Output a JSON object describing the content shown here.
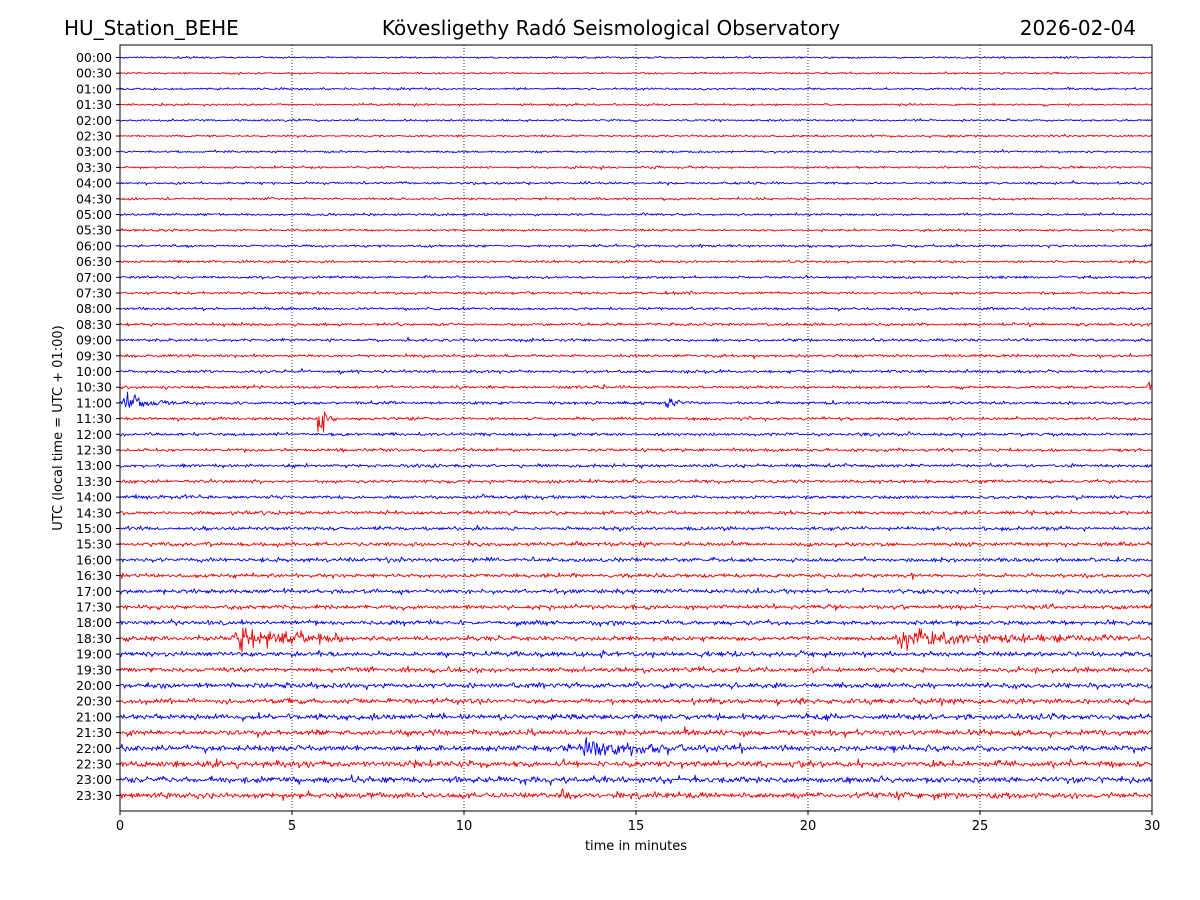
{
  "header": {
    "station": "HU_Station_BEHE",
    "title": "Kövesligethy Radó Seismological Observatory",
    "date": "2026-02-04"
  },
  "chart_data": {
    "type": "line",
    "title": "Kövesligethy Radó Seismological Observatory",
    "xlabel": "time in minutes",
    "ylabel": "UTC (local time = UTC + 01:00)",
    "xlim": [
      0,
      30
    ],
    "xticks": [
      0,
      5,
      10,
      15,
      20,
      25,
      30
    ],
    "grid": "vertical dotted at x ticks",
    "row_labels": [
      "00:00",
      "00:30",
      "01:00",
      "01:30",
      "02:00",
      "02:30",
      "03:00",
      "03:30",
      "04:00",
      "04:30",
      "05:00",
      "05:30",
      "06:00",
      "06:30",
      "07:00",
      "07:30",
      "08:00",
      "08:30",
      "09:00",
      "09:30",
      "10:00",
      "10:30",
      "11:00",
      "11:30",
      "12:00",
      "12:30",
      "13:00",
      "13:30",
      "14:00",
      "14:30",
      "15:00",
      "15:30",
      "16:00",
      "16:30",
      "17:00",
      "17:30",
      "18:00",
      "18:30",
      "19:00",
      "19:30",
      "20:00",
      "20:30",
      "21:00",
      "21:30",
      "22:00",
      "22:30",
      "23:00",
      "23:30"
    ],
    "trace_colors": [
      "#0000ee",
      "#ee0000"
    ],
    "noise_level": [
      0.2,
      0.2,
      0.22,
      0.22,
      0.22,
      0.22,
      0.22,
      0.24,
      0.25,
      0.25,
      0.25,
      0.25,
      0.25,
      0.25,
      0.27,
      0.27,
      0.28,
      0.3,
      0.3,
      0.3,
      0.3,
      0.3,
      0.32,
      0.32,
      0.32,
      0.33,
      0.34,
      0.35,
      0.35,
      0.38,
      0.38,
      0.4,
      0.42,
      0.42,
      0.45,
      0.45,
      0.47,
      0.47,
      0.5,
      0.5,
      0.52,
      0.55,
      0.58,
      0.6,
      0.62,
      0.62,
      0.62,
      0.62
    ],
    "events": [
      {
        "row": "10:30",
        "minute": 29.9,
        "amplitude": 3.2,
        "duration_min": 0.3
      },
      {
        "row": "11:00",
        "minute": 0.1,
        "amplitude": 2.6,
        "duration_min": 1.0
      },
      {
        "row": "11:00",
        "minute": 15.9,
        "amplitude": 1.6,
        "duration_min": 0.3
      },
      {
        "row": "11:30",
        "minute": 5.8,
        "amplitude": 4.5,
        "duration_min": 0.3
      },
      {
        "row": "18:30",
        "minute": 3.4,
        "amplitude": 3.2,
        "duration_min": 2.0
      },
      {
        "row": "18:30",
        "minute": 22.6,
        "amplitude": 1.8,
        "duration_min": 4.5
      },
      {
        "row": "22:00",
        "minute": 13.5,
        "amplitude": 1.8,
        "duration_min": 2.0
      },
      {
        "row": "23:30",
        "minute": 12.8,
        "amplitude": 1.8,
        "duration_min": 0.2
      }
    ]
  }
}
